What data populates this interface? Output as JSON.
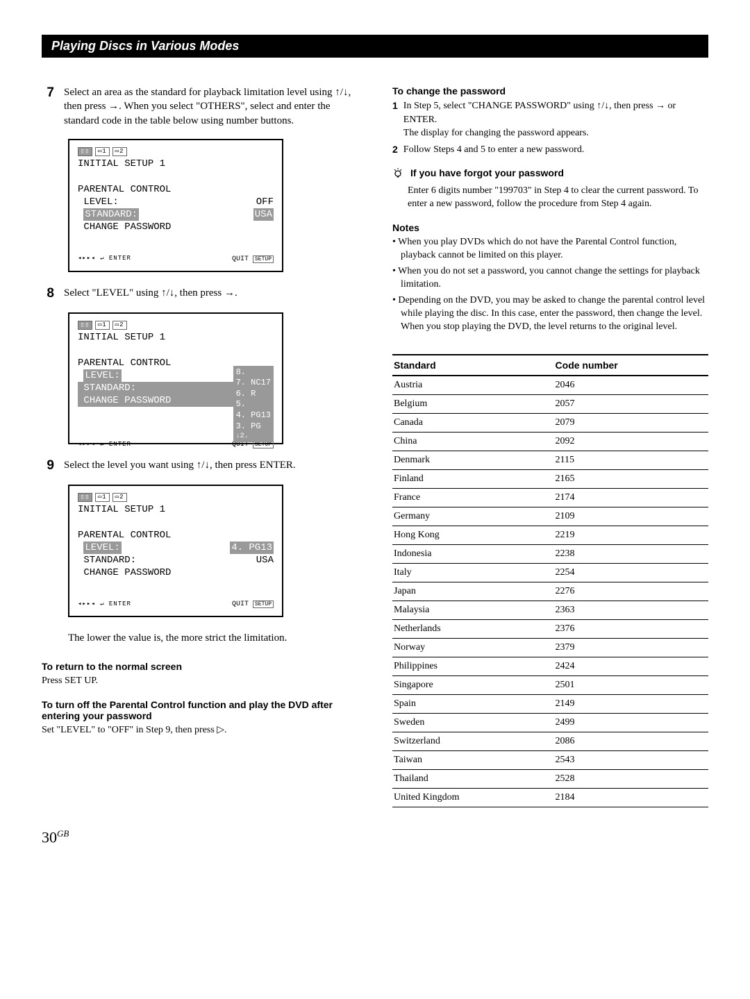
{
  "header": "Playing Discs in Various Modes",
  "col1": {
    "steps": [
      {
        "num": "7",
        "text": "Select an area as the standard for playback limitation level using ↑/↓, then press →. When you select \"OTHERS\", select and enter the standard code in the table below using number buttons."
      },
      {
        "num": "8",
        "text": "Select \"LEVEL\" using ↑/↓, then press →."
      },
      {
        "num": "9",
        "text": "Select the level you want using ↑/↓, then press ENTER."
      }
    ],
    "screens": {
      "title": "INITIAL SETUP 1",
      "section": "PARENTAL CONTROL",
      "level_label": "LEVEL:",
      "level_off": "OFF",
      "standard_label": "STANDARD:",
      "standard_val": "USA",
      "change_pw": "CHANGE PASSWORD",
      "quit": "QUIT",
      "setup_btn": "SETUP",
      "levels": [
        "8.",
        "7. NC17",
        "6.    R",
        "5.",
        "4. PG13",
        "3.   PG",
        "2."
      ],
      "level9": "4. PG13"
    },
    "lower_text": "The lower the value is, the more strict the limitation.",
    "subs": [
      {
        "head": "To return to the normal screen",
        "body": "Press SET UP."
      },
      {
        "head": "To turn off the Parental Control function and play the DVD after entering your password",
        "body": "Set \"LEVEL\" to \"OFF\" in Step 9, then press ▷."
      }
    ]
  },
  "col2": {
    "pw_head": "To change the password",
    "pw_steps": [
      {
        "n": "1",
        "t": "In Step 5, select \"CHANGE PASSWORD\" using ↑/↓, then press → or ENTER.",
        "t2": "The display for changing the password appears."
      },
      {
        "n": "2",
        "t": "Follow Steps 4 and 5 to enter a new password."
      }
    ],
    "tip_head": "If you have forgot your password",
    "tip_body": "Enter 6 digits number \"199703\" in Step 4 to clear the current password.  To enter a new password, follow the procedure from Step 4 again.",
    "notes_head": "Notes",
    "notes": [
      "When you play DVDs which do not have the Parental Control function, playback cannot be limited on this player.",
      "When you do not set a password, you cannot change the settings for playback limitation.",
      "Depending on the DVD, you may be asked to change the parental control level while playing the disc.  In this case, enter the password, then change the level. When you stop playing the DVD, the level returns to the original level."
    ],
    "table": {
      "h1": "Standard",
      "h2": "Code number",
      "rows": [
        [
          "Austria",
          "2046"
        ],
        [
          "Belgium",
          "2057"
        ],
        [
          "Canada",
          "2079"
        ],
        [
          "China",
          "2092"
        ],
        [
          "Denmark",
          "2115"
        ],
        [
          "Finland",
          "2165"
        ],
        [
          "France",
          "2174"
        ],
        [
          "Germany",
          "2109"
        ],
        [
          "Hong Kong",
          "2219"
        ],
        [
          "Indonesia",
          "2238"
        ],
        [
          "Italy",
          "2254"
        ],
        [
          "Japan",
          "2276"
        ],
        [
          "Malaysia",
          "2363"
        ],
        [
          "Netherlands",
          "2376"
        ],
        [
          "Norway",
          "2379"
        ],
        [
          "Philippines",
          "2424"
        ],
        [
          "Singapore",
          "2501"
        ],
        [
          "Spain",
          "2149"
        ],
        [
          "Sweden",
          "2499"
        ],
        [
          "Switzerland",
          "2086"
        ],
        [
          "Taiwan",
          "2543"
        ],
        [
          "Thailand",
          "2528"
        ],
        [
          "United Kingdom",
          "2184"
        ]
      ]
    }
  },
  "page": "30",
  "page_suf": "GB"
}
